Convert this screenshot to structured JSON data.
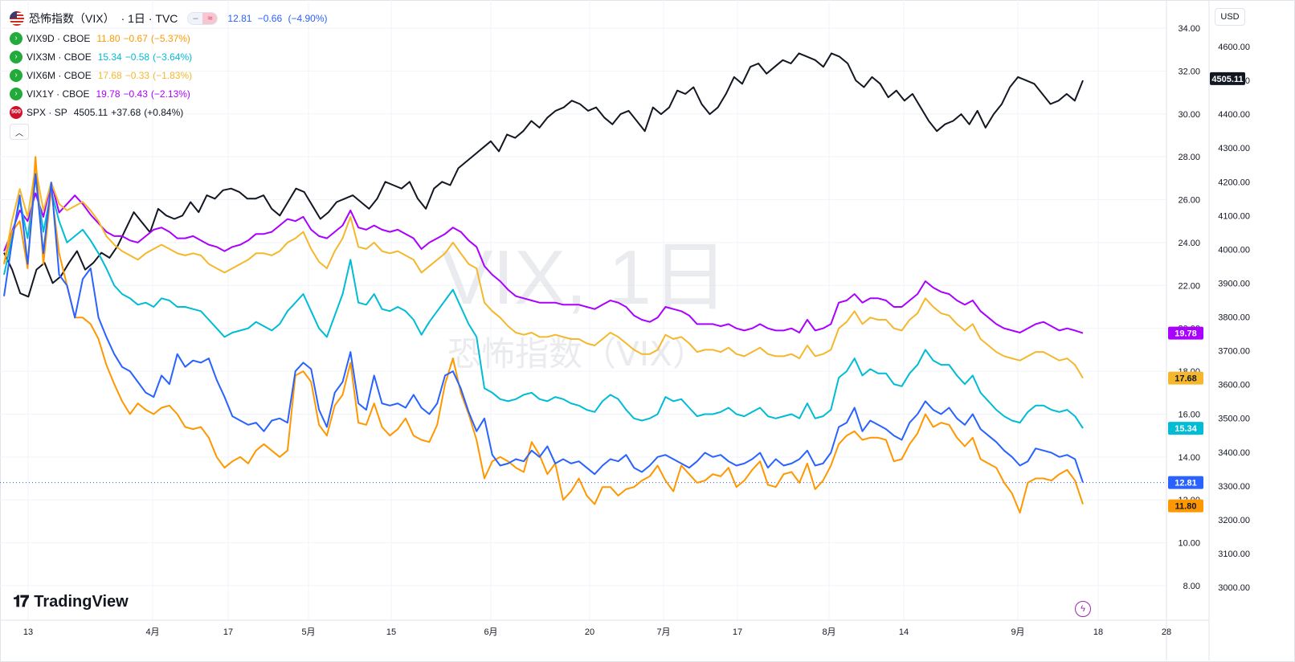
{
  "header": {
    "title": "恐怖指数（VIX）",
    "interval": "1日",
    "exchange": "TVC",
    "main_values": [
      "12.81",
      "−0.66",
      "(−4.90%)"
    ],
    "main_color": "#2962ff"
  },
  "legend": [
    {
      "symbol": "VIX9D",
      "exchange": "CBOE",
      "values": [
        "11.80",
        "−0.67",
        "(−5.37%)"
      ],
      "color": "#ff9800"
    },
    {
      "symbol": "VIX3M",
      "exchange": "CBOE",
      "values": [
        "15.34",
        "−0.58",
        "(−3.64%)"
      ],
      "color": "#00bcd4"
    },
    {
      "symbol": "VIX6M",
      "exchange": "CBOE",
      "values": [
        "17.68",
        "−0.33",
        "(−1.83%)"
      ],
      "color": "#f5b72c"
    },
    {
      "symbol": "VIX1Y",
      "exchange": "CBOE",
      "values": [
        "19.78",
        "−0.43",
        "(−2.13%)"
      ],
      "color": "#aa00ff"
    },
    {
      "symbol": "SPX",
      "exchange": "SP",
      "values": [
        "4505.11",
        "+37.68",
        "(+0.84%)"
      ],
      "color": "#131722",
      "badge": "500"
    }
  ],
  "currency": "USD",
  "brand": "TradingView",
  "watermark": {
    "line1": "VIX, 1日",
    "line2": "恐怖指数（VIX）"
  },
  "chart_data": {
    "type": "line",
    "x_ticks": [
      "13",
      "4月",
      "17",
      "5月",
      "15",
      "6月",
      "20",
      "7月",
      "17",
      "8月",
      "14",
      "9月",
      "18",
      "28"
    ],
    "left_axis": {
      "ticks": [
        "34.00",
        "32.00",
        "30.00",
        "28.00",
        "26.00",
        "24.00",
        "22.00",
        "20.00",
        "18.00",
        "16.00",
        "14.00",
        "12.00",
        "10.00",
        "8.00"
      ],
      "range": [
        7,
        34.5
      ]
    },
    "right_axis": {
      "ticks": [
        "4600.00",
        "4500.00",
        "4400.00",
        "4300.00",
        "4200.00",
        "4100.00",
        "4000.00",
        "3900.00",
        "3800.00",
        "3700.00",
        "3600.00",
        "3500.00",
        "3400.00",
        "3300.00",
        "3200.00",
        "3100.00",
        "3000.00"
      ],
      "range": [
        2950,
        4650
      ]
    },
    "price_tags": [
      {
        "label": "4505.11",
        "value": 4505.11,
        "axis": "right",
        "color": "#131722"
      },
      {
        "label": "19.78",
        "value": 19.78,
        "axis": "left",
        "color": "#aa00ff"
      },
      {
        "label": "17.68",
        "value": 17.68,
        "axis": "left",
        "color": "#f5b72c"
      },
      {
        "label": "15.34",
        "value": 15.34,
        "axis": "left",
        "color": "#00bcd4"
      },
      {
        "label": "12.81",
        "value": 12.81,
        "axis": "left",
        "color": "#2962ff"
      },
      {
        "label": "11.80",
        "value": 11.8,
        "axis": "left",
        "color": "#ff9800"
      }
    ],
    "series": [
      {
        "name": "SPX",
        "axis": "right",
        "color": "#131722",
        "values": [
          3990,
          3940,
          3870,
          3860,
          3940,
          3960,
          3900,
          3920,
          3960,
          3995,
          3940,
          3960,
          3990,
          3975,
          4010,
          4060,
          4110,
          4080,
          4050,
          4120,
          4100,
          4090,
          4100,
          4140,
          4110,
          4160,
          4150,
          4175,
          4180,
          4170,
          4150,
          4150,
          4160,
          4120,
          4100,
          4140,
          4180,
          4170,
          4130,
          4090,
          4110,
          4140,
          4150,
          4160,
          4140,
          4120,
          4150,
          4200,
          4190,
          4180,
          4200,
          4150,
          4120,
          4180,
          4200,
          4190,
          4240,
          4260,
          4280,
          4300,
          4320,
          4290,
          4340,
          4330,
          4350,
          4380,
          4360,
          4390,
          4410,
          4420,
          4440,
          4430,
          4410,
          4420,
          4390,
          4370,
          4400,
          4410,
          4380,
          4350,
          4420,
          4400,
          4420,
          4470,
          4460,
          4480,
          4430,
          4400,
          4420,
          4460,
          4510,
          4490,
          4540,
          4550,
          4520,
          4540,
          4560,
          4550,
          4580,
          4570,
          4560,
          4540,
          4580,
          4570,
          4550,
          4500,
          4480,
          4510,
          4490,
          4450,
          4470,
          4440,
          4460,
          4420,
          4380,
          4350,
          4370,
          4380,
          4400,
          4370,
          4410,
          4360,
          4400,
          4430,
          4480,
          4510,
          4500,
          4490,
          4460,
          4430,
          4440,
          4460,
          4440,
          4500
        ]
      },
      {
        "name": "VIX",
        "axis": "left",
        "color": "#2962ff",
        "values": [
          21.5,
          24.0,
          26.2,
          23.0,
          27.2,
          23.5,
          26.8,
          22.5,
          22.0,
          20.5,
          22.3,
          22.8,
          20.5,
          19.6,
          18.8,
          18.2,
          18.0,
          17.5,
          17.0,
          16.8,
          17.8,
          17.4,
          18.8,
          18.2,
          18.5,
          18.4,
          18.6,
          17.6,
          16.8,
          15.9,
          15.7,
          15.5,
          15.6,
          15.2,
          15.7,
          15.8,
          15.6,
          18.0,
          18.4,
          18.1,
          16.2,
          15.4,
          17.0,
          17.5,
          18.9,
          16.5,
          16.2,
          17.8,
          16.5,
          16.4,
          16.5,
          16.3,
          16.9,
          16.3,
          16.0,
          16.5,
          17.8,
          18.0,
          17.2,
          16.1,
          15.2,
          15.8,
          14.1,
          13.6,
          13.7,
          13.9,
          13.8,
          14.3,
          14.0,
          14.5,
          13.7,
          13.9,
          13.7,
          13.8,
          13.5,
          13.2,
          13.6,
          13.9,
          13.8,
          14.1,
          13.5,
          13.3,
          13.6,
          14.0,
          14.1,
          13.9,
          13.7,
          13.5,
          13.8,
          14.2,
          14.0,
          14.1,
          13.8,
          13.6,
          13.7,
          13.9,
          14.2,
          13.5,
          13.9,
          13.6,
          13.7,
          13.9,
          14.3,
          13.6,
          13.7,
          14.2,
          15.4,
          15.6,
          16.3,
          15.2,
          15.7,
          15.5,
          15.3,
          15.0,
          14.8,
          15.6,
          16.0,
          16.6,
          16.2,
          16.0,
          16.3,
          15.8,
          15.5,
          16.0,
          15.3,
          15.0,
          14.7,
          14.3,
          14.0,
          13.6,
          13.8,
          14.4,
          14.3,
          14.2,
          14.0,
          14.1,
          13.9,
          12.81
        ]
      },
      {
        "name": "VIX9D",
        "axis": "left",
        "color": "#ff9800",
        "values": [
          23.0,
          24.5,
          25.0,
          22.8,
          28.0,
          23.0,
          26.5,
          23.5,
          22.0,
          20.5,
          20.5,
          20.2,
          19.5,
          18.3,
          17.4,
          16.6,
          16.0,
          16.5,
          16.2,
          16.0,
          16.3,
          16.4,
          16.0,
          15.4,
          15.3,
          15.4,
          14.9,
          14.0,
          13.5,
          13.8,
          14.0,
          13.7,
          14.3,
          14.6,
          14.3,
          14.0,
          14.3,
          17.8,
          18.0,
          17.5,
          15.5,
          15.0,
          16.4,
          16.9,
          18.4,
          15.6,
          15.5,
          16.5,
          15.4,
          15.0,
          15.3,
          15.8,
          15.0,
          14.8,
          14.7,
          15.5,
          17.4,
          18.6,
          17.0,
          16.0,
          14.8,
          13.0,
          13.8,
          14.0,
          13.8,
          13.5,
          13.3,
          14.7,
          14.1,
          13.2,
          13.7,
          12.0,
          12.4,
          13.0,
          12.2,
          11.8,
          12.6,
          12.6,
          12.2,
          12.5,
          12.6,
          12.9,
          13.1,
          13.6,
          12.9,
          12.4,
          13.6,
          13.2,
          12.8,
          12.9,
          13.2,
          13.1,
          13.5,
          12.6,
          12.9,
          13.4,
          13.8,
          12.7,
          12.6,
          13.2,
          13.3,
          12.8,
          13.7,
          12.5,
          12.9,
          13.6,
          14.6,
          15.0,
          15.2,
          14.8,
          14.9,
          14.9,
          14.8,
          13.8,
          13.9,
          14.6,
          15.1,
          16.0,
          15.4,
          15.6,
          15.5,
          14.9,
          14.5,
          14.9,
          13.9,
          13.7,
          13.5,
          12.8,
          12.3,
          11.4,
          12.8,
          13.0,
          13.0,
          12.9,
          13.2,
          13.4,
          12.9,
          11.8
        ]
      },
      {
        "name": "VIX3M",
        "axis": "left",
        "color": "#00bcd4",
        "values": [
          22.5,
          24.2,
          26.0,
          24.2,
          27.0,
          24.5,
          26.4,
          25.0,
          24.0,
          24.3,
          24.6,
          24.1,
          23.5,
          22.8,
          22.0,
          21.6,
          21.4,
          21.1,
          21.2,
          21.0,
          21.4,
          21.3,
          21.0,
          21.0,
          20.9,
          20.8,
          20.4,
          20.0,
          19.6,
          19.8,
          19.9,
          20.0,
          20.3,
          20.1,
          19.9,
          20.2,
          20.8,
          21.2,
          21.6,
          20.8,
          20.0,
          19.6,
          20.6,
          21.6,
          23.2,
          21.2,
          21.1,
          21.6,
          20.9,
          20.8,
          21.0,
          20.8,
          20.4,
          19.7,
          20.3,
          20.8,
          21.3,
          21.8,
          21.0,
          20.2,
          19.6,
          17.2,
          17.0,
          16.7,
          16.6,
          16.7,
          16.9,
          17.0,
          16.7,
          16.6,
          16.8,
          16.7,
          16.5,
          16.4,
          16.2,
          16.1,
          16.6,
          16.9,
          16.7,
          16.2,
          15.8,
          15.7,
          15.8,
          16.0,
          16.8,
          16.6,
          16.7,
          16.3,
          15.9,
          16.0,
          16.0,
          16.1,
          16.3,
          16.0,
          15.9,
          16.1,
          16.3,
          15.9,
          15.8,
          15.9,
          16.0,
          15.8,
          16.5,
          15.8,
          15.9,
          16.2,
          17.7,
          18.0,
          18.6,
          17.8,
          18.1,
          17.9,
          17.9,
          17.4,
          17.3,
          17.9,
          18.3,
          19.0,
          18.5,
          18.3,
          18.3,
          17.8,
          17.4,
          17.8,
          17.0,
          16.6,
          16.2,
          15.9,
          15.7,
          15.6,
          16.1,
          16.4,
          16.4,
          16.2,
          16.1,
          16.2,
          15.9,
          15.34
        ]
      },
      {
        "name": "VIX6M",
        "axis": "left",
        "color": "#f5b72c",
        "values": [
          23.0,
          25.0,
          26.5,
          25.2,
          27.5,
          25.5,
          26.8,
          25.8,
          25.5,
          25.7,
          25.9,
          25.5,
          25.0,
          24.3,
          23.9,
          23.6,
          23.4,
          23.2,
          23.5,
          23.7,
          23.9,
          23.7,
          23.5,
          23.4,
          23.5,
          23.4,
          23.0,
          22.8,
          22.6,
          22.8,
          23.0,
          23.2,
          23.5,
          23.5,
          23.4,
          23.6,
          24.0,
          24.2,
          24.5,
          23.7,
          23.1,
          22.8,
          23.6,
          24.2,
          25.2,
          23.8,
          23.7,
          24.0,
          23.6,
          23.5,
          23.6,
          23.4,
          23.2,
          22.6,
          22.9,
          23.2,
          23.5,
          24.0,
          23.5,
          23.0,
          22.8,
          21.2,
          20.8,
          20.5,
          20.1,
          19.8,
          19.7,
          19.8,
          19.6,
          19.6,
          19.7,
          19.6,
          19.5,
          19.5,
          19.3,
          19.2,
          19.5,
          19.8,
          19.6,
          19.3,
          19.0,
          18.8,
          18.8,
          19.0,
          19.7,
          19.5,
          19.6,
          19.3,
          18.9,
          19.0,
          19.0,
          18.9,
          19.1,
          18.8,
          18.7,
          18.9,
          19.1,
          18.8,
          18.7,
          18.7,
          18.8,
          18.6,
          19.2,
          18.7,
          18.8,
          19.0,
          20.0,
          20.3,
          20.8,
          20.2,
          20.5,
          20.4,
          20.4,
          20.0,
          19.9,
          20.4,
          20.7,
          21.4,
          21.0,
          20.7,
          20.6,
          20.2,
          19.9,
          20.2,
          19.5,
          19.2,
          18.9,
          18.7,
          18.6,
          18.5,
          18.7,
          18.9,
          18.9,
          18.7,
          18.5,
          18.6,
          18.3,
          17.68
        ]
      },
      {
        "name": "VIX1Y",
        "axis": "left",
        "color": "#aa00ff",
        "values": [
          23.6,
          24.5,
          25.5,
          25.0,
          26.3,
          25.2,
          26.8,
          25.4,
          25.8,
          26.2,
          25.8,
          25.3,
          24.9,
          24.5,
          24.3,
          24.3,
          24.1,
          24.0,
          24.3,
          24.6,
          24.7,
          24.5,
          24.2,
          24.2,
          24.3,
          24.1,
          23.9,
          23.8,
          23.6,
          23.8,
          23.9,
          24.1,
          24.4,
          24.4,
          24.5,
          24.8,
          25.1,
          25.0,
          25.2,
          24.6,
          24.3,
          24.2,
          24.5,
          24.8,
          25.5,
          24.7,
          24.6,
          24.8,
          24.6,
          24.5,
          24.6,
          24.4,
          24.2,
          23.7,
          24.0,
          24.2,
          24.4,
          24.7,
          24.5,
          24.1,
          23.8,
          22.9,
          22.5,
          22.2,
          21.8,
          21.5,
          21.4,
          21.3,
          21.2,
          21.2,
          21.2,
          21.1,
          21.1,
          21.1,
          21.0,
          20.9,
          21.1,
          21.3,
          21.2,
          21.0,
          20.6,
          20.4,
          20.3,
          20.5,
          21.0,
          20.9,
          20.8,
          20.6,
          20.2,
          20.2,
          20.2,
          20.1,
          20.2,
          20.0,
          19.9,
          20.0,
          20.2,
          20.0,
          19.9,
          19.9,
          20.0,
          19.8,
          20.4,
          19.9,
          20.0,
          20.2,
          21.2,
          21.3,
          21.6,
          21.2,
          21.4,
          21.4,
          21.3,
          21.0,
          21.0,
          21.3,
          21.6,
          22.2,
          21.9,
          21.7,
          21.6,
          21.3,
          21.1,
          21.3,
          20.8,
          20.5,
          20.2,
          20.0,
          19.9,
          19.8,
          20.0,
          20.2,
          20.3,
          20.1,
          19.9,
          20.0,
          19.9,
          19.78
        ]
      }
    ]
  }
}
